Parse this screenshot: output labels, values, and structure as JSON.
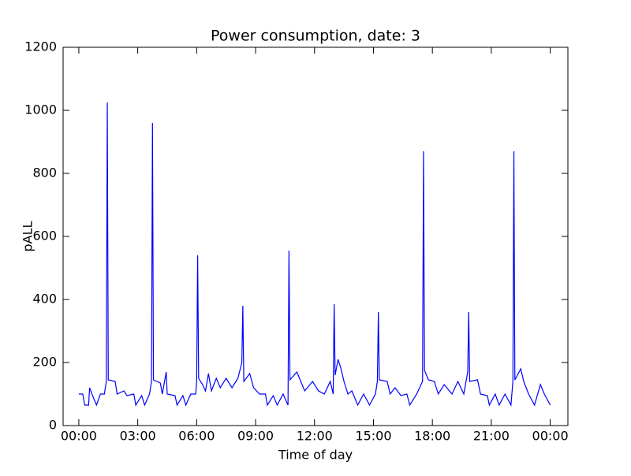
{
  "chart_data": {
    "type": "line",
    "title": "Power consumption, date:  3",
    "xlabel": "Time of day",
    "ylabel": "pALL",
    "color": "#0000ff",
    "x": [
      0,
      0.2,
      0.3,
      0.5,
      0.55,
      0.7,
      0.9,
      1.1,
      1.3,
      1.4,
      1.45,
      1.5,
      1.85,
      1.95,
      2.3,
      2.45,
      2.8,
      2.9,
      3.2,
      3.35,
      3.6,
      3.7,
      3.75,
      3.8,
      4.15,
      4.25,
      4.45,
      4.5,
      4.9,
      5.0,
      5.3,
      5.45,
      5.7,
      5.95,
      6.0,
      6.05,
      6.1,
      6.3,
      6.45,
      6.6,
      6.75,
      7.0,
      7.2,
      7.5,
      7.8,
      8.1,
      8.3,
      8.35,
      8.4,
      8.7,
      8.9,
      9.2,
      9.5,
      9.6,
      9.9,
      10.1,
      10.4,
      10.65,
      10.7,
      10.75,
      11.1,
      11.3,
      11.5,
      11.9,
      12.2,
      12.5,
      12.8,
      12.95,
      13.0,
      13.05,
      13.2,
      13.35,
      13.5,
      13.7,
      13.9,
      14.2,
      14.5,
      14.8,
      15.1,
      15.2,
      15.25,
      15.3,
      15.7,
      15.85,
      16.1,
      16.4,
      16.7,
      16.85,
      17.2,
      17.5,
      17.55,
      17.6,
      17.8,
      18.1,
      18.3,
      18.6,
      19.0,
      19.3,
      19.6,
      19.8,
      19.85,
      19.9,
      20.3,
      20.45,
      20.8,
      20.9,
      21.2,
      21.4,
      21.7,
      22.0,
      22.1,
      22.15,
      22.2,
      22.5,
      22.65,
      22.9,
      23.2,
      23.5,
      23.7,
      24.0
    ],
    "values": [
      100,
      100,
      65,
      65,
      120,
      95,
      65,
      100,
      100,
      140,
      1025,
      145,
      140,
      100,
      110,
      95,
      100,
      65,
      95,
      65,
      100,
      140,
      960,
      145,
      135,
      100,
      170,
      100,
      95,
      65,
      95,
      65,
      100,
      100,
      140,
      540,
      150,
      130,
      110,
      165,
      110,
      150,
      120,
      150,
      120,
      150,
      200,
      380,
      140,
      165,
      120,
      100,
      100,
      65,
      95,
      65,
      100,
      65,
      555,
      145,
      170,
      140,
      110,
      140,
      110,
      100,
      140,
      100,
      385,
      160,
      210,
      180,
      140,
      100,
      110,
      65,
      100,
      65,
      100,
      140,
      360,
      145,
      140,
      100,
      120,
      95,
      100,
      65,
      100,
      140,
      870,
      175,
      145,
      140,
      100,
      130,
      100,
      140,
      100,
      170,
      360,
      140,
      145,
      100,
      95,
      65,
      100,
      65,
      100,
      65,
      140,
      870,
      145,
      180,
      140,
      100,
      65,
      130,
      100,
      65
    ],
    "xlim": [
      -0.8,
      24.9
    ],
    "ylim": [
      0,
      1200
    ],
    "xticks": [
      {
        "value": 0,
        "label": "00:00"
      },
      {
        "value": 3,
        "label": "03:00"
      },
      {
        "value": 6,
        "label": "06:00"
      },
      {
        "value": 9,
        "label": "09:00"
      },
      {
        "value": 12,
        "label": "12:00"
      },
      {
        "value": 15,
        "label": "15:00"
      },
      {
        "value": 18,
        "label": "18:00"
      },
      {
        "value": 21,
        "label": "21:00"
      },
      {
        "value": 24,
        "label": "00:00"
      }
    ],
    "yticks": [
      0,
      200,
      400,
      600,
      800,
      1000,
      1200
    ]
  }
}
